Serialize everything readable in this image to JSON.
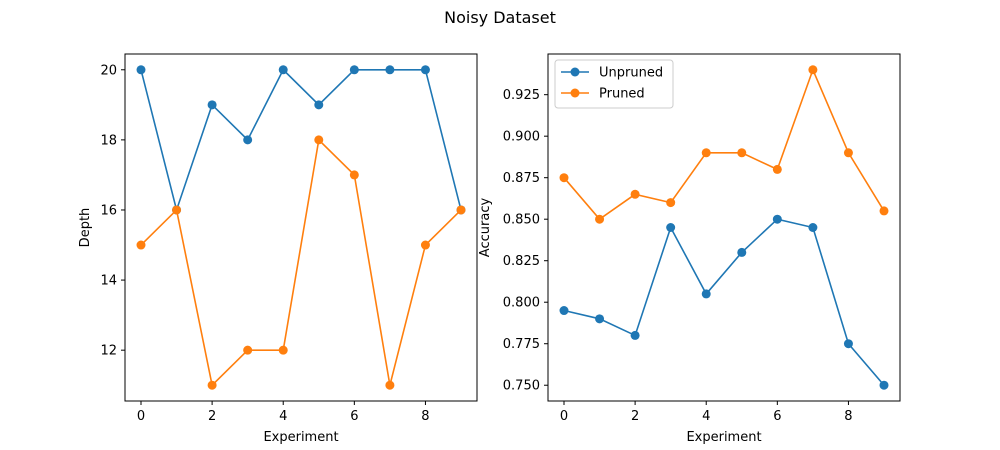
{
  "figure": {
    "title": "Noisy Dataset"
  },
  "chart_data": [
    {
      "type": "line",
      "title": "",
      "xlabel": "Experiment",
      "ylabel": "Depth",
      "xlim": [
        -0.45,
        9.45
      ],
      "ylim": [
        10.55,
        20.45
      ],
      "xticks": [
        0,
        2,
        4,
        6,
        8
      ],
      "yticks": [
        12,
        14,
        16,
        18,
        20
      ],
      "ytick_decimals": 0,
      "legend": null,
      "x": [
        0,
        1,
        2,
        3,
        4,
        5,
        6,
        7,
        8,
        9
      ],
      "series": [
        {
          "name": "Unpruned",
          "color": "#1f77b4",
          "values": [
            20,
            16,
            19,
            18,
            20,
            19,
            20,
            20,
            20,
            16
          ]
        },
        {
          "name": "Pruned",
          "color": "#ff7f0e",
          "values": [
            15,
            16,
            11,
            12,
            12,
            18,
            17,
            11,
            15,
            16
          ]
        }
      ]
    },
    {
      "type": "line",
      "title": "",
      "xlabel": "Experiment",
      "ylabel": "Accuracy",
      "xlim": [
        -0.45,
        9.45
      ],
      "ylim": [
        0.7405,
        0.9495
      ],
      "xticks": [
        0,
        2,
        4,
        6,
        8
      ],
      "yticks": [
        0.75,
        0.775,
        0.8,
        0.825,
        0.85,
        0.875,
        0.9,
        0.925
      ],
      "ytick_decimals": 3,
      "legend": "upper left",
      "x": [
        0,
        1,
        2,
        3,
        4,
        5,
        6,
        7,
        8,
        9
      ],
      "series": [
        {
          "name": "Unpruned",
          "color": "#1f77b4",
          "values": [
            0.795,
            0.79,
            0.78,
            0.845,
            0.805,
            0.83,
            0.85,
            0.845,
            0.775,
            0.75
          ]
        },
        {
          "name": "Pruned",
          "color": "#ff7f0e",
          "values": [
            0.875,
            0.85,
            0.865,
            0.86,
            0.89,
            0.89,
            0.88,
            0.94,
            0.89,
            0.855
          ]
        }
      ]
    }
  ]
}
